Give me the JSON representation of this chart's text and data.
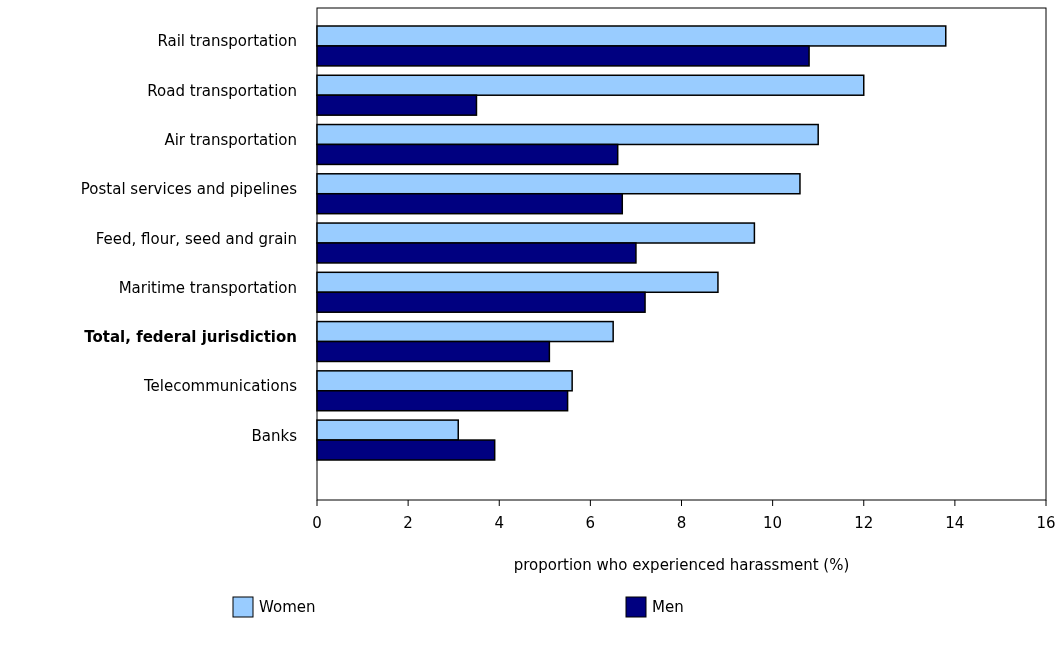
{
  "chart_data": {
    "type": "bar",
    "orientation": "horizontal",
    "xlabel": "proportion who experienced harassment (%)",
    "categories": [
      "Rail transportation",
      "Road transportation",
      "Air transportation",
      "Postal services and pipelines",
      "Feed, flour, seed and grain",
      "Maritime transportation",
      "Total, federal jurisdiction",
      "Telecommunications",
      "Banks"
    ],
    "series": [
      {
        "name": "Women",
        "color": "#99ccff",
        "values": [
          13.8,
          12.0,
          11.0,
          10.6,
          9.6,
          8.8,
          6.5,
          5.6,
          3.1
        ]
      },
      {
        "name": "Men",
        "color": "#000080",
        "values": [
          10.8,
          3.5,
          6.6,
          6.7,
          7.0,
          7.2,
          5.1,
          5.5,
          3.9
        ]
      }
    ],
    "xlim": [
      0,
      16
    ],
    "xticks": [
      0,
      2,
      4,
      6,
      8,
      10,
      12,
      14,
      16
    ],
    "legend": "bottom",
    "grid": false
  }
}
